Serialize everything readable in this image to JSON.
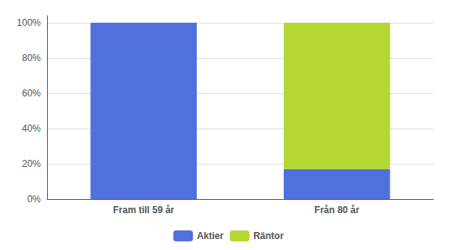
{
  "chart_data": {
    "type": "bar",
    "stacked": true,
    "categories": [
      "Fram till 59 år",
      "Från 80 år"
    ],
    "series": [
      {
        "name": "Aktier",
        "values": [
          100,
          17
        ]
      },
      {
        "name": "Räntor",
        "values": [
          0,
          83
        ]
      }
    ],
    "ylim": [
      0,
      104
    ],
    "yticks": [
      {
        "value": 0,
        "label": "0%"
      },
      {
        "value": 20,
        "label": "20%"
      },
      {
        "value": 40,
        "label": "40%"
      },
      {
        "value": 60,
        "label": "60%"
      },
      {
        "value": 80,
        "label": "80%"
      },
      {
        "value": 100,
        "label": "100%"
      }
    ],
    "grid": true,
    "legend": "bottom"
  }
}
